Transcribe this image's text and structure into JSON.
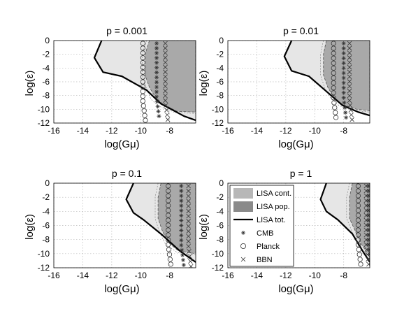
{
  "chart_data": [
    {
      "type": "area",
      "title": "p = 0.001",
      "xlabel": "log(Gμ)",
      "ylabel": "log(ε)",
      "xlim": [
        -16,
        -6.2
      ],
      "ylim": [
        -12,
        0
      ],
      "xticks": [
        "-16",
        "-14",
        "-12",
        "-10",
        "-8"
      ],
      "yticks": [
        "0",
        "-2",
        "-4",
        "-6",
        "-8",
        "-10",
        "-12"
      ],
      "grid": true,
      "series": [
        {
          "name": "LISA cont.",
          "style": "fill",
          "x": [
            -9.6,
            -9.9,
            -9.9,
            -9.6,
            -9.3,
            -8.8,
            -7.6,
            -6.2,
            -6.2
          ],
          "y": [
            0,
            -2,
            -5,
            -7,
            -8.5,
            -9.5,
            -10.5,
            -10.6,
            0
          ]
        },
        {
          "name": "LISA pop.",
          "style": "fill",
          "x": [
            -9.4,
            -9.7,
            -9.7,
            -9.4,
            -9.0,
            -8.5,
            -7.5,
            -6.2,
            -6.2
          ],
          "y": [
            0,
            -2,
            -5,
            -6.8,
            -8.2,
            -9.2,
            -10.3,
            -10.4,
            0
          ]
        },
        {
          "name": "LISA tot.",
          "style": "line",
          "x": [
            -12.7,
            -13.2,
            -12.6,
            -11.3,
            -9.6,
            -8.6,
            -7.0,
            -6.2
          ],
          "y": [
            0,
            -2.5,
            -4.6,
            -5.2,
            -7.2,
            -9.2,
            -11.0,
            -11.6
          ]
        },
        {
          "name": "CMB",
          "style": "marker-column",
          "x": -8.9,
          "y": [
            0,
            -11
          ]
        },
        {
          "name": "Planck",
          "style": "marker-column",
          "x": -9.85,
          "y": [
            0,
            -11.6
          ]
        },
        {
          "name": "BBN",
          "style": "marker-column",
          "x": -8.3,
          "y": [
            0,
            -11.5
          ]
        }
      ]
    },
    {
      "type": "area",
      "title": "p = 0.01",
      "xlabel": "log(Gμ)",
      "ylabel": "log(ε)",
      "xlim": [
        -16,
        -6.2
      ],
      "ylim": [
        -12,
        0
      ],
      "xticks": [
        "-16",
        "-14",
        "-12",
        "-10",
        "-8"
      ],
      "yticks": [
        "0",
        "-2",
        "-4",
        "-6",
        "-8",
        "-10",
        "-12"
      ],
      "grid": true,
      "series": [
        {
          "name": "LISA cont.",
          "style": "fill",
          "x": [
            -9.4,
            -9.6,
            -9.6,
            -9.3,
            -8.9,
            -8.3,
            -7.2,
            -6.2,
            -6.2
          ],
          "y": [
            0,
            -2,
            -5,
            -7,
            -8.4,
            -9.5,
            -10.2,
            -10.4,
            0
          ]
        },
        {
          "name": "LISA pop.",
          "style": "fill",
          "x": [
            -9.2,
            -9.4,
            -9.4,
            -9.1,
            -8.7,
            -8.1,
            -7.1,
            -6.2,
            -6.2
          ],
          "y": [
            0,
            -2,
            -5,
            -6.8,
            -8.2,
            -9.3,
            -10.0,
            -10.2,
            0
          ]
        },
        {
          "name": "LISA tot.",
          "style": "line",
          "x": [
            -11.6,
            -12.1,
            -11.6,
            -10.4,
            -9.3,
            -8.1,
            -7.0,
            -6.2
          ],
          "y": [
            0,
            -2.3,
            -4.4,
            -5.2,
            -7.2,
            -9.4,
            -10.4,
            -10.9
          ]
        },
        {
          "name": "CMB",
          "style": "marker-column",
          "x": -8.0,
          "y": [
            0,
            -11.2
          ]
        },
        {
          "name": "Planck",
          "style": "marker-column",
          "x": -8.7,
          "y": [
            0,
            -11.2
          ]
        },
        {
          "name": "BBN",
          "style": "marker-column",
          "x": -7.6,
          "y": [
            0,
            -11.5
          ]
        }
      ]
    },
    {
      "type": "area",
      "title": "p = 0.1",
      "xlabel": "log(Gμ)",
      "ylabel": "log(ε)",
      "xlim": [
        -16,
        -6.2
      ],
      "ylim": [
        -12,
        0
      ],
      "xticks": [
        "-16",
        "-14",
        "-12",
        "-10",
        "-8"
      ],
      "yticks": [
        "0",
        "-2",
        "-4",
        "-6",
        "-8",
        "-10",
        "-12"
      ],
      "grid": true,
      "series": [
        {
          "name": "LISA cont.",
          "style": "fill",
          "x": [
            -8.8,
            -9.0,
            -9.0,
            -8.7,
            -8.3,
            -7.5,
            -6.2,
            -6.2
          ],
          "y": [
            0,
            -2,
            -5,
            -7,
            -8.6,
            -9.8,
            -10.2,
            0
          ]
        },
        {
          "name": "LISA pop.",
          "style": "fill",
          "x": [
            -8.6,
            -8.8,
            -8.8,
            -8.5,
            -8.1,
            -7.4,
            -6.2,
            -6.2
          ],
          "y": [
            0,
            -2,
            -5,
            -6.8,
            -8.4,
            -9.6,
            -10.0,
            0
          ]
        },
        {
          "name": "LISA tot.",
          "style": "line",
          "x": [
            -10.5,
            -11.0,
            -10.5,
            -9.8,
            -8.6,
            -7.3,
            -6.2
          ],
          "y": [
            0,
            -2.3,
            -4.2,
            -5.2,
            -7.2,
            -9.6,
            -11.2
          ]
        },
        {
          "name": "CMB",
          "style": "marker-column",
          "x": -7.2,
          "y": [
            0,
            -11.6
          ]
        },
        {
          "name": "Planck",
          "style": "marker-column",
          "x": -8.1,
          "y": [
            0,
            -11.5
          ]
        },
        {
          "name": "BBN",
          "style": "marker-column",
          "x": -6.7,
          "y": [
            0,
            -11.8
          ]
        }
      ]
    },
    {
      "type": "area",
      "title": "p = 1",
      "xlabel": "log(Gμ)",
      "ylabel": "log(ε)",
      "xlim": [
        -16,
        -6.2
      ],
      "ylim": [
        -12,
        0
      ],
      "xticks": [
        "-16",
        "-14",
        "-12",
        "-10",
        "-8"
      ],
      "yticks": [
        "0",
        "-2",
        "-4",
        "-6",
        "-8",
        "-10",
        "-12"
      ],
      "grid": true,
      "legend": "upper-left",
      "series": [
        {
          "name": "LISA cont.",
          "style": "fill",
          "x": [
            -7.6,
            -7.8,
            -7.8,
            -7.4,
            -7.0,
            -6.5,
            -6.2,
            -6.2
          ],
          "y": [
            0,
            -2,
            -5,
            -7,
            -8.8,
            -10.0,
            -10.3,
            0
          ]
        },
        {
          "name": "LISA pop.",
          "style": "fill",
          "x": [
            -7.4,
            -7.6,
            -7.6,
            -7.2,
            -6.8,
            -6.4,
            -6.2,
            -6.2
          ],
          "y": [
            0,
            -2,
            -5,
            -6.8,
            -8.6,
            -9.8,
            -10.1,
            0
          ]
        },
        {
          "name": "LISA tot.",
          "style": "line",
          "x": [
            -9.2,
            -9.6,
            -9.2,
            -8.4,
            -7.4,
            -6.7,
            -6.2
          ],
          "y": [
            0,
            -2.3,
            -4.0,
            -5.2,
            -7.2,
            -9.6,
            -11.2
          ]
        },
        {
          "name": "CMB",
          "style": "marker-column",
          "x": -6.3,
          "y": [
            0,
            -11.5
          ]
        },
        {
          "name": "Planck",
          "style": "marker-column",
          "x": -7.0,
          "y": [
            0,
            -11.5
          ]
        },
        {
          "name": "BBN",
          "style": "marker-column",
          "x": -6.45,
          "y": [
            0,
            -11.5
          ]
        }
      ]
    }
  ],
  "legend": {
    "items": [
      {
        "label": "LISA cont.",
        "symbol": "patch",
        "color": "#b7b7b7"
      },
      {
        "label": "LISA pop.",
        "symbol": "patch",
        "color": "#8a8a8a"
      },
      {
        "label": "LISA tot.",
        "symbol": "line",
        "color": "#000000"
      },
      {
        "label": "CMB",
        "symbol": "asterisk",
        "color": "#000000"
      },
      {
        "label": "Planck",
        "symbol": "circle",
        "color": "#000000"
      },
      {
        "label": "BBN",
        "symbol": "cross",
        "color": "#000000"
      }
    ]
  },
  "colors": {
    "cont_fill": "#e6e6e6",
    "pop_fill": "#a9a9a9",
    "tot_line": "#000000",
    "marker": "#333333"
  }
}
